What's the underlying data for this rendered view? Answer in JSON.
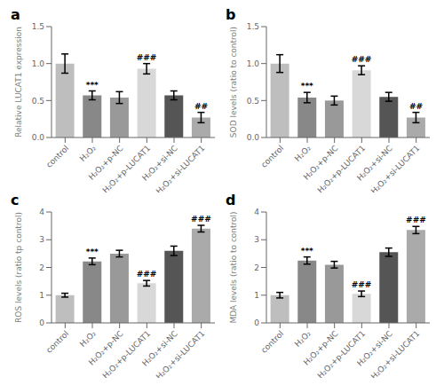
{
  "chart_data": [
    {
      "type": "bar",
      "title": "a",
      "ylabel": "Relative LUCAT1 expression",
      "categories": [
        "control",
        "H₂O₂",
        "H₂O₂+p-NC",
        "H₂O₂+p-LUCAT1",
        "H₂O₂+si-NC",
        "H₂O₂+si-LUCAT1"
      ],
      "values": [
        1.0,
        0.57,
        0.54,
        0.93,
        0.57,
        0.27
      ],
      "errors": [
        0.13,
        0.06,
        0.08,
        0.07,
        0.06,
        0.07
      ],
      "colors": [
        "#bebebe",
        "#888888",
        "#999999",
        "#d8d8d8",
        "#555555",
        "#aaaaaa"
      ],
      "ylim": [
        0,
        1.5
      ],
      "yticks": [
        {
          "value": 0,
          "label": "0.0"
        },
        0.5,
        {
          "value": 1,
          "label": "1.0"
        },
        1.5
      ],
      "annotations": [
        {
          "category": "H₂O₂",
          "text": "***"
        },
        {
          "category": "H₂O₂+p-LUCAT1",
          "text": "###"
        },
        {
          "category": "H₂O₂+si-LUCAT1",
          "text": "##"
        }
      ],
      "grid": false
    },
    {
      "type": "bar",
      "title": "b",
      "ylabel": "SOD levels (ratio to control)",
      "categories": [
        "control",
        "H₂O₂",
        "H₂O₂+p-NC",
        "H₂O₂+p-LUCAT1",
        "H₂O₂+si-NC",
        "H₂O₂+si-LUCAT1"
      ],
      "values": [
        1.0,
        0.54,
        0.5,
        0.91,
        0.55,
        0.27
      ],
      "errors": [
        0.12,
        0.07,
        0.06,
        0.06,
        0.06,
        0.07
      ],
      "colors": [
        "#bebebe",
        "#888888",
        "#999999",
        "#d8d8d8",
        "#555555",
        "#aaaaaa"
      ],
      "ylim": [
        0,
        1.5
      ],
      "yticks": [
        {
          "value": 0,
          "label": "0.0"
        },
        0.5,
        {
          "value": 1,
          "label": "1.0"
        },
        1.5
      ],
      "annotations": [
        {
          "category": "H₂O₂",
          "text": "***"
        },
        {
          "category": "H₂O₂+p-LUCAT1",
          "text": "###"
        },
        {
          "category": "H₂O₂+si-LUCAT1",
          "text": "##"
        }
      ],
      "grid": false
    },
    {
      "type": "bar",
      "title": "c",
      "ylabel": "ROS levels (ratio tp control)",
      "categories": [
        "control",
        "H₂O₂",
        "H₂O₂+p-NC",
        "H₂O₂+p-LUCAT1",
        "H₂O₂+si-NC",
        "H₂O₂+si-LUCAT1"
      ],
      "values": [
        1.0,
        2.22,
        2.5,
        1.43,
        2.6,
        3.4
      ],
      "errors": [
        0.07,
        0.12,
        0.12,
        0.1,
        0.17,
        0.12
      ],
      "colors": [
        "#bebebe",
        "#888888",
        "#999999",
        "#d8d8d8",
        "#555555",
        "#aaaaaa"
      ],
      "ylim": [
        0,
        4
      ],
      "yticks": [
        0,
        1,
        2,
        3,
        4
      ],
      "annotations": [
        {
          "category": "H₂O₂",
          "text": "***"
        },
        {
          "category": "H₂O₂+p-LUCAT1",
          "text": "###"
        },
        {
          "category": "H₂O₂+si-LUCAT1",
          "text": "###"
        }
      ],
      "grid": false
    },
    {
      "type": "bar",
      "title": "d",
      "ylabel": "MDA levels (ratio to control)",
      "categories": [
        "control",
        "H₂O₂",
        "H₂O₂+p-NC",
        "H₂O₂+p-LUCAT1",
        "H₂O₂+si-NC",
        "H₂O₂+si-LUCAT1"
      ],
      "values": [
        1.0,
        2.25,
        2.1,
        1.05,
        2.55,
        3.35
      ],
      "errors": [
        0.1,
        0.13,
        0.12,
        0.1,
        0.15,
        0.13
      ],
      "colors": [
        "#bebebe",
        "#888888",
        "#999999",
        "#d8d8d8",
        "#555555",
        "#aaaaaa"
      ],
      "ylim": [
        0,
        4
      ],
      "yticks": [
        0,
        1,
        2,
        3,
        4
      ],
      "annotations": [
        {
          "category": "H₂O₂",
          "text": "***"
        },
        {
          "category": "H₂O₂+p-LUCAT1",
          "text": "###"
        },
        {
          "category": "H₂O₂+si-LUCAT1",
          "text": "###"
        }
      ],
      "grid": false
    }
  ]
}
